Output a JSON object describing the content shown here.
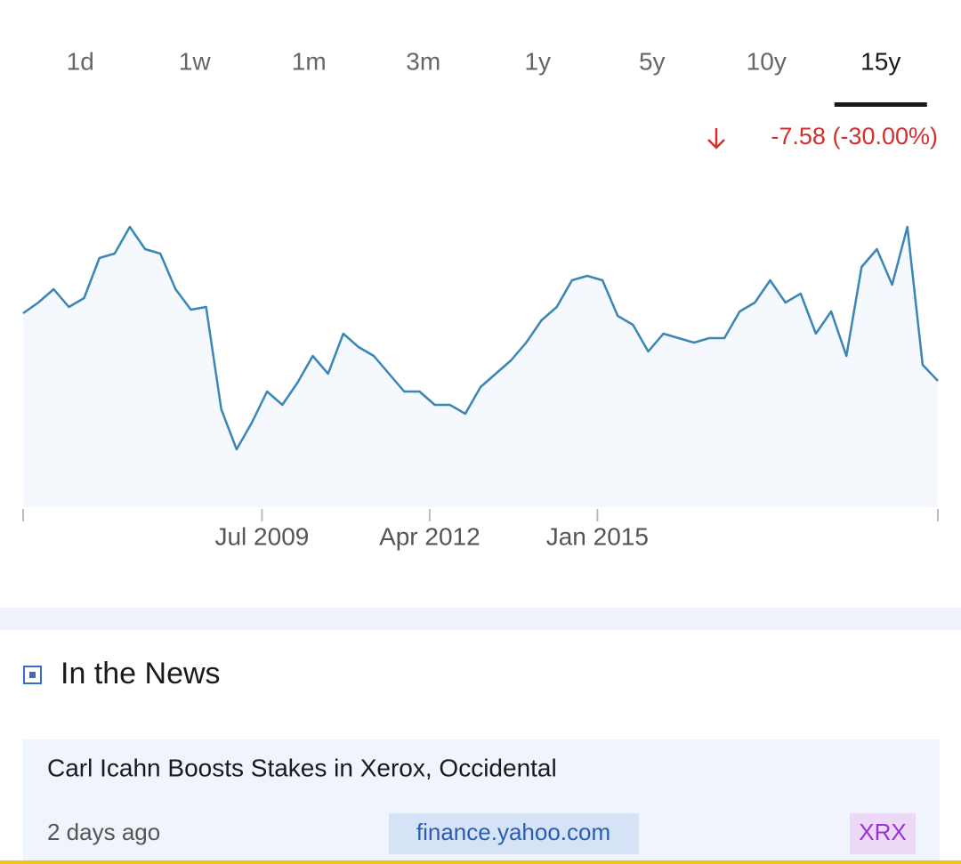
{
  "tabs": [
    {
      "label": "1d",
      "active": false
    },
    {
      "label": "1w",
      "active": false
    },
    {
      "label": "1m",
      "active": false
    },
    {
      "label": "3m",
      "active": false
    },
    {
      "label": "1y",
      "active": false
    },
    {
      "label": "5y",
      "active": false
    },
    {
      "label": "10y",
      "active": false
    },
    {
      "label": "15y",
      "active": true
    }
  ],
  "change": "-7.58 (-30.00%)",
  "chart_data": {
    "type": "line",
    "color": "#3a86b4",
    "fill": "#f5f8fc",
    "x": [
      "2005-08",
      "2005-11",
      "2006-02",
      "2006-05",
      "2006-08",
      "2006-11",
      "2007-02",
      "2007-05",
      "2007-08",
      "2007-11",
      "2008-02",
      "2008-05",
      "2008-08",
      "2008-11",
      "2009-02",
      "2009-05",
      "2009-08",
      "2009-11",
      "2010-02",
      "2010-05",
      "2010-08",
      "2010-11",
      "2011-02",
      "2011-05",
      "2011-08",
      "2011-11",
      "2012-02",
      "2012-05",
      "2012-08",
      "2012-11",
      "2013-02",
      "2013-05",
      "2013-08",
      "2013-11",
      "2014-02",
      "2014-05",
      "2014-08",
      "2014-11",
      "2015-02",
      "2015-05",
      "2015-08",
      "2015-11",
      "2016-02",
      "2016-05",
      "2016-08",
      "2016-11",
      "2017-02",
      "2017-05",
      "2017-08",
      "2017-11",
      "2018-02",
      "2018-05",
      "2018-08",
      "2018-11",
      "2019-02",
      "2019-05",
      "2019-08",
      "2019-11",
      "2020-02",
      "2020-05",
      "2020-08"
    ],
    "values": [
      25.3,
      26.5,
      28.0,
      26.0,
      27.0,
      31.5,
      32.0,
      35.0,
      32.5,
      32.0,
      28.0,
      25.7,
      26.0,
      14.5,
      10.0,
      13.0,
      16.5,
      15.0,
      17.5,
      20.5,
      18.5,
      23.0,
      21.5,
      20.5,
      18.5,
      16.5,
      16.5,
      15.0,
      15.0,
      14.0,
      17.0,
      18.5,
      20.0,
      22.0,
      24.5,
      26.0,
      29.0,
      29.5,
      29.0,
      25.0,
      24.0,
      21.0,
      23.0,
      22.5,
      22.0,
      22.5,
      22.5,
      25.5,
      26.5,
      29.0,
      26.5,
      27.5,
      23.0,
      25.5,
      20.5,
      30.5,
      32.5,
      28.5,
      35.0,
      19.5,
      17.7
    ],
    "xlim": [
      "2005-08",
      "2020-08"
    ],
    "xticks": [
      {
        "value": "2009-07",
        "label": "Jul 2009"
      },
      {
        "value": "2012-04",
        "label": "Apr 2012"
      },
      {
        "value": "2015-01",
        "label": "Jan 2015"
      }
    ],
    "ylim": [
      3.5,
      40
    ]
  },
  "news": {
    "heading": "In the News",
    "articles": [
      {
        "title": "Carl Icahn Boosts Stakes in Xerox, Occidental",
        "time": "2 days ago",
        "source": "finance.yahoo.com",
        "ticker": "XRX"
      }
    ]
  }
}
